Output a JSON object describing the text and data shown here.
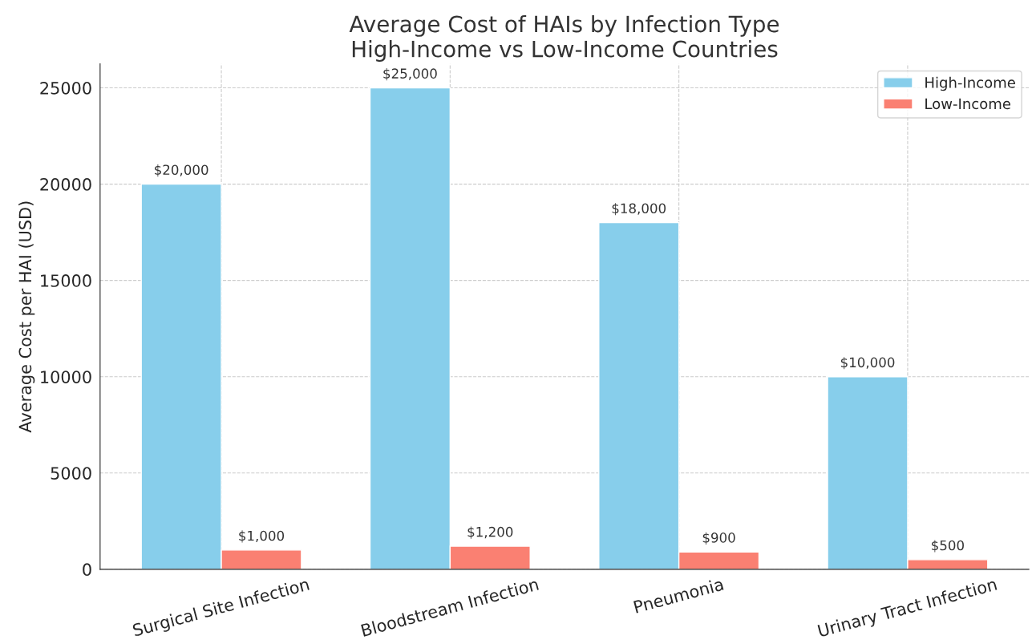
{
  "chart_data": {
    "type": "bar",
    "title": "Average Cost of HAIs by Infection Type\nHigh-Income vs Low-Income Countries",
    "ylabel": "Average Cost per HAI (USD)",
    "categories": [
      "Surgical Site Infection",
      "Bloodstream Infection",
      "Pneumonia",
      "Urinary Tract Infection"
    ],
    "series": [
      {
        "name": "High-Income",
        "color": "#87ceeb",
        "values": [
          20000,
          25000,
          18000,
          10000
        ],
        "value_labels": [
          "$20,000",
          "$25,000",
          "$18,000",
          "$10,000"
        ]
      },
      {
        "name": "Low-Income",
        "color": "#fa8072",
        "values": [
          1000,
          1200,
          900,
          500
        ],
        "value_labels": [
          "$1,000",
          "$1,200",
          "$900",
          "$500"
        ]
      }
    ],
    "ylim": [
      0,
      26250
    ],
    "yticks": [
      0,
      5000,
      10000,
      15000,
      20000,
      25000
    ],
    "grid": true,
    "legend": "top right"
  }
}
